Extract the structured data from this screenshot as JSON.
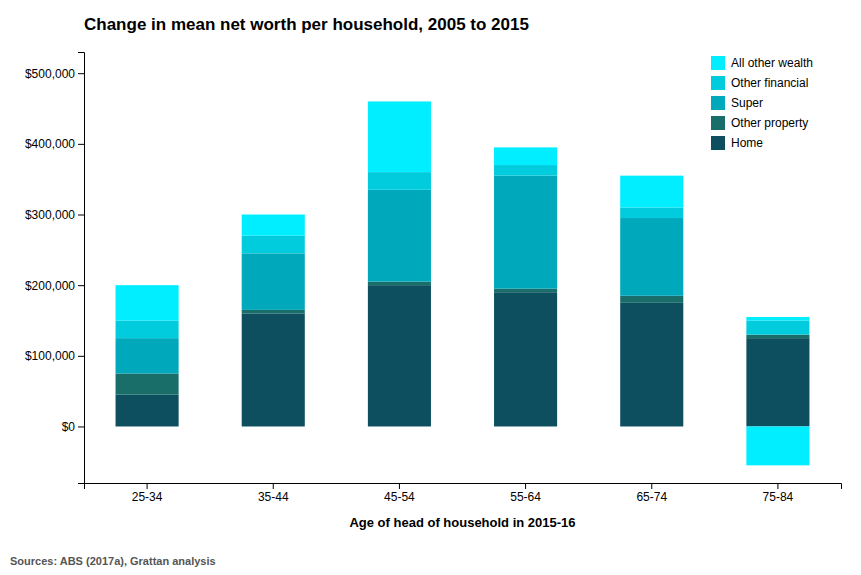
{
  "chart_data": {
    "type": "bar",
    "stacked": true,
    "title": "Change in mean net worth per household, 2005 to 2015",
    "xlabel": "Age of head of household in 2015-16",
    "annotations": [
      "Sources: ABS (2017a), Grattan analysis"
    ],
    "categories": [
      "25-34",
      "35-44",
      "45-54",
      "55-64",
      "65-74",
      "75-84"
    ],
    "series": [
      {
        "name": "Home",
        "color": "#0d4f5e",
        "values": [
          45000,
          160000,
          200000,
          190000,
          175000,
          125000
        ]
      },
      {
        "name": "Other property",
        "color": "#1a6e6a",
        "values": [
          30000,
          5000,
          5000,
          5000,
          10000,
          5000
        ]
      },
      {
        "name": "Super",
        "color": "#00a8bb",
        "values": [
          50000,
          80000,
          130000,
          160000,
          110000,
          0
        ]
      },
      {
        "name": "Other financial",
        "color": "#00ccdd",
        "values": [
          25000,
          25000,
          25000,
          15000,
          15000,
          20000
        ]
      },
      {
        "name": "All other wealth",
        "color": "#00eeff",
        "values": [
          50000,
          30000,
          100000,
          25000,
          45000,
          5000
        ],
        "negative_values": [
          null,
          null,
          null,
          null,
          null,
          -55000
        ]
      }
    ],
    "ylim": [
      -80000,
      530000
    ],
    "yticks": [
      {
        "value": 0,
        "label": "$0"
      },
      {
        "value": 100000,
        "label": "$100,000"
      },
      {
        "value": 200000,
        "label": "$200,000"
      },
      {
        "value": 300000,
        "label": "$300,000"
      },
      {
        "value": 400000,
        "label": "$400,000"
      },
      {
        "value": 500000,
        "label": "$500,000"
      }
    ],
    "grid": false,
    "legend": "upper right"
  }
}
